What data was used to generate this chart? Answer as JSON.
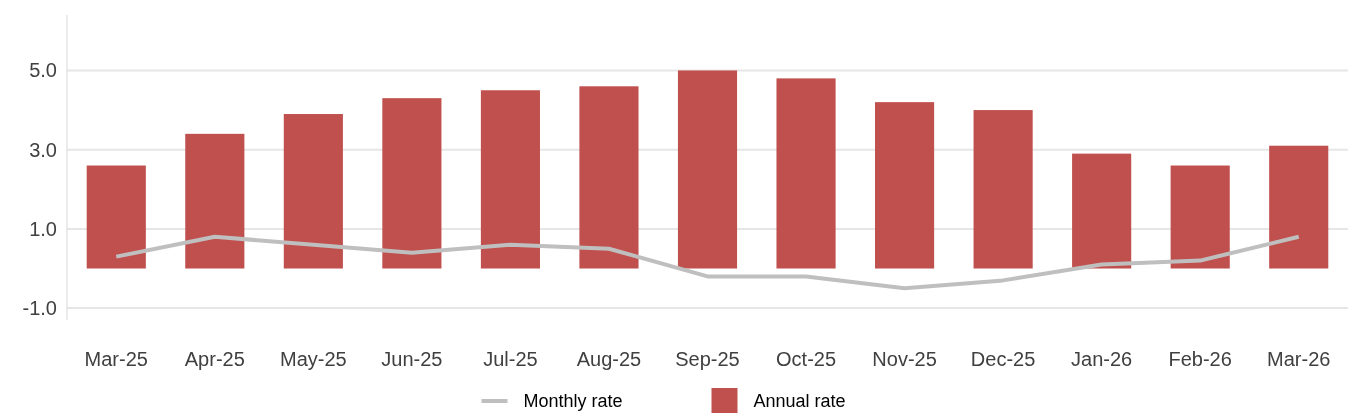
{
  "chart_data": {
    "type": "bar",
    "categories": [
      "Mar-25",
      "Apr-25",
      "May-25",
      "Jun-25",
      "Jul-25",
      "Aug-25",
      "Sep-25",
      "Oct-25",
      "Nov-25",
      "Dec-25",
      "Jan-26",
      "Feb-26",
      "Mar-26"
    ],
    "series": [
      {
        "name": "Monthly rate",
        "type": "line",
        "color": "#bfbfbf",
        "values": [
          0.3,
          0.8,
          0.6,
          0.4,
          0.6,
          0.5,
          -0.2,
          -0.2,
          -0.5,
          -0.3,
          0.1,
          0.2,
          0.8
        ]
      },
      {
        "name": "Annual rate",
        "color": "#c0504d",
        "values": [
          2.6,
          3.4,
          3.9,
          4.3,
          4.5,
          4.6,
          5.0,
          4.8,
          4.2,
          4.0,
          2.9,
          2.6,
          3.1
        ]
      }
    ],
    "ylim": [
      -1.3,
      6.4
    ],
    "yticks": [
      {
        "value": -1,
        "label": "-1.0"
      },
      {
        "value": 1,
        "label": "1.0"
      },
      {
        "value": 3,
        "label": "3.0"
      },
      {
        "value": 5,
        "label": "5.0"
      }
    ],
    "grid": "y",
    "legend": "bottom",
    "marker": "none"
  }
}
